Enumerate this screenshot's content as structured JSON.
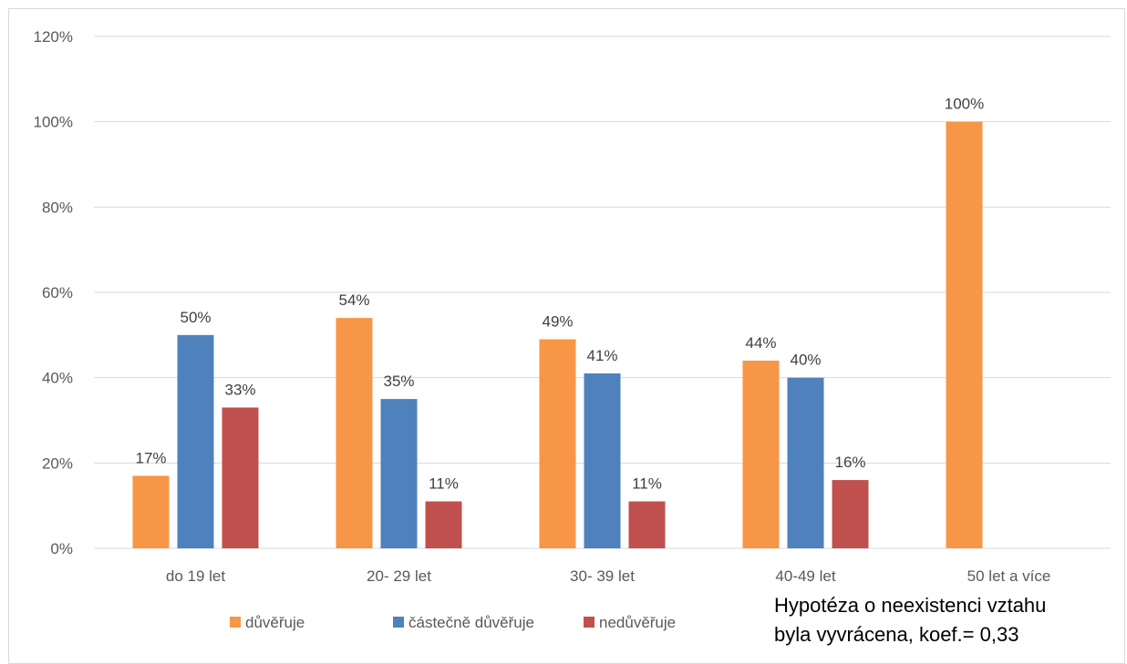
{
  "chart_data": {
    "type": "bar",
    "categories": [
      "do 19 let",
      "20- 29 let",
      "30- 39 let",
      "40-49 let",
      "50 let a více"
    ],
    "series": [
      {
        "name": "důvěřuje",
        "color": "#f79646",
        "values": [
          17,
          54,
          49,
          44,
          100
        ]
      },
      {
        "name": "částečně důvěřuje",
        "color": "#4f81bd",
        "values": [
          50,
          35,
          41,
          40,
          null
        ]
      },
      {
        "name": "nedůvěřuje",
        "color": "#c0504d",
        "values": [
          33,
          11,
          11,
          16,
          null
        ]
      }
    ],
    "ylim": [
      0,
      120
    ],
    "yticks": [
      0,
      20,
      40,
      60,
      80,
      100,
      120
    ],
    "ytick_suffix": "%",
    "data_label_suffix": "%",
    "grid": true,
    "legend_position": "bottom"
  },
  "note": {
    "line1": "Hypotéza o neexistenci vztahu",
    "line2": "byla vyvrácena, koef.= 0,33"
  }
}
